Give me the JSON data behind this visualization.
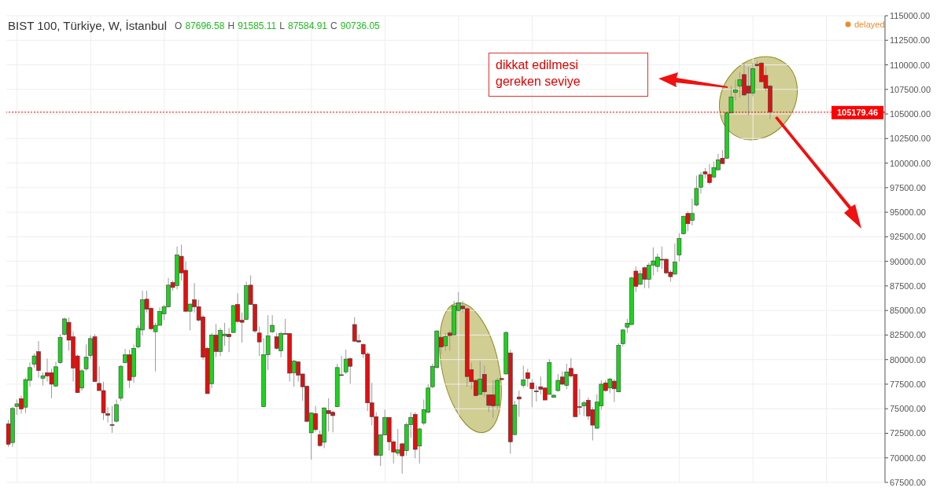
{
  "chart_data": {
    "type": "candlestick",
    "title": "BIST 100, Türkiye, W, İstanbul",
    "subtitle": "O 87696.58 H 91585.11 L 87584.91 C 90736.05",
    "annotations": [
      "delayed",
      "dikkat edilmesi gereken seviye"
    ],
    "colors": [
      "#e01010",
      "#1ed21e",
      "#1ed21e",
      "#e01010",
      "#1ed21e",
      "#1ed21e",
      "#1ed21e",
      "#e01010",
      "#1ed21e",
      "#e01010",
      "#e01010",
      "#1ed21e",
      "#1ed21e",
      "#1ed21e",
      "#e01010",
      "#e01010",
      "#e01010",
      "#1ed21e",
      "#1ed21e",
      "#1ed21e",
      "#e01010",
      "#e01010",
      "#e01010",
      "#e01010",
      "#e01010",
      "#1ed21e",
      "#1ed21e",
      "#1ed21e",
      "#e01010",
      "#1ed21e",
      "#1ed21e",
      "#1ed21e",
      "#e01010",
      "#e01010",
      "#1ed21e",
      "#1ed21e",
      "#1ed21e",
      "#1ed21e",
      "#e01010",
      "#1ed21e",
      "#e01010",
      "#e01010",
      "#1ed21e",
      "#e01010",
      "#e01010",
      "#e01010",
      "#e01010",
      "#1ed21e",
      "#e01010",
      "#1ed21e",
      "#1ed21e",
      "#e01010",
      "#1ed21e",
      "#e01010",
      "#e01010",
      "#1ed21e",
      "#e01010",
      "#e01010",
      "#e01010",
      "#1ed21e",
      "#1ed21e",
      "#1ed21e",
      "#e01010",
      "#1ed21e",
      "#e01010",
      "#e01010",
      "#1ed21e",
      "#e01010",
      "#e01010",
      "#e01010",
      "#1ed21e",
      "#e01010",
      "#e01010",
      "#1ed21e",
      "#e01010",
      "#e01010",
      "#1ed21e",
      "#e01010",
      "#1ed21e",
      "#e01010",
      "#e01010",
      "#e01010",
      "#e01010",
      "#e01010",
      "#e01010",
      "#e01010",
      "#1ed21e",
      "#1ed21e",
      "#e01010",
      "#e01010",
      "#1ed21e",
      "#e01010",
      "#1ed21e",
      "#1ed21e",
      "#e01010",
      "#1ed21e",
      "#1ed21e",
      "#1ed21e",
      "#1ed21e",
      "#1ed21e",
      "#e01010",
      "#1ed21e",
      "#e01010",
      "#1ed21e",
      "#1ed21e",
      "#e01010",
      "#e01010",
      "#e01010",
      "#e01010",
      "#1ed21e",
      "#e01010",
      "#e01010",
      "#e01010",
      "#1ed21e",
      "#e01010",
      "#1ed21e",
      "#e01010",
      "#1ed21e",
      "#e01010",
      "#1ed21e",
      "#e01010",
      "#e01010",
      "#e01010",
      "#e01010",
      "#e01010",
      "#1ed21e",
      "#1ed21e",
      "#1ed21e",
      "#e01010",
      "#1ed21e",
      "#e01010",
      "#e01010",
      "#e01010",
      "#1ed21e",
      "#e01010",
      "#e01010",
      "#1ed21e",
      "#1ed21e",
      "#e01010",
      "#1ed21e",
      "#e01010",
      "#1ed21e",
      "#1ed21e",
      "#1ed21e",
      "#1ed21e",
      "#e01010",
      "#1ed21e",
      "#e01010",
      "#1ed21e",
      "#1ed21e",
      "#1ed21e",
      "#e01010",
      "#e01010",
      "#e01010",
      "#1ed21e",
      "#1ed21e",
      "#1ed21e",
      "#e01010",
      "#1ed21e",
      "#1ed21e",
      "#1ed21e",
      "#e01010",
      "#e01010",
      "#1ed21e",
      "#1ed21e",
      "#e01010",
      "#1ed21e",
      "#1ed21e",
      "#1ed21e",
      "#1ed21e",
      "#e01010",
      "#e01010",
      "#1ed21e",
      "#e01010",
      "#e01010",
      "#e01010",
      "#e01010",
      null,
      null,
      null,
      null,
      null,
      null,
      null,
      null,
      null,
      null,
      null,
      null,
      null,
      null,
      null,
      null,
      null,
      null,
      null,
      null,
      null,
      null,
      null,
      null,
      null,
      null
    ],
    "ylim": [
      67500,
      115000
    ],
    "yticks": [
      {
        "value": 67500,
        "label": "67500.00"
      },
      {
        "value": 70000,
        "label": "70000.00"
      },
      {
        "value": 72500,
        "label": "72500.00"
      },
      {
        "value": 75000,
        "label": "75000.00"
      },
      {
        "value": 77500,
        "label": "77500.00"
      },
      {
        "value": 80000,
        "label": "80000.00"
      },
      {
        "value": 82500,
        "label": "82500.00"
      },
      {
        "value": 85000,
        "label": "85000.00"
      },
      {
        "value": 87500,
        "label": "87500.00"
      },
      {
        "value": 90000,
        "label": "90000.00"
      },
      {
        "value": 92500,
        "label": "92500.00"
      },
      {
        "value": 95000,
        "label": "95000.00"
      },
      {
        "value": 97500,
        "label": "97500.00"
      },
      {
        "value": 100000,
        "label": "100000.00"
      },
      {
        "value": 102500,
        "label": "102500.00"
      },
      {
        "value": 105000,
        "label": "105000.00"
      },
      {
        "value": 107500,
        "label": "107500.00"
      },
      {
        "value": 110000,
        "label": "110000.00"
      },
      {
        "value": 112500,
        "label": "112500.00"
      },
      {
        "value": 115000,
        "label": "115000.00"
      }
    ],
    "grid": true,
    "ref_lines": [
      {
        "axis": "y",
        "value": 105179.46,
        "label": "105179.46",
        "color": "#ff0000",
        "line_style": "dotted"
      }
    ],
    "categories": [
      null,
      null,
      null,
      null,
      null,
      null,
      null,
      null,
      null,
      null,
      null,
      null,
      null,
      null,
      null,
      null,
      null,
      null,
      null,
      null,
      null,
      null,
      null,
      null,
      null,
      null,
      null,
      null,
      null,
      null,
      null,
      null,
      null,
      null,
      null,
      null,
      null,
      null,
      null,
      null,
      null,
      null,
      null,
      null,
      null,
      null,
      null,
      null,
      null,
      null,
      null,
      null,
      null,
      null,
      null,
      null,
      null,
      null,
      null,
      null,
      null,
      null,
      null,
      null,
      null,
      null,
      null,
      null,
      null,
      null,
      null,
      null,
      null,
      null,
      null,
      null,
      null,
      null,
      null,
      null,
      null,
      null,
      null,
      null,
      null,
      null,
      null,
      null,
      null,
      null,
      null,
      null,
      null,
      null,
      null,
      null,
      null,
      null,
      null,
      null,
      null,
      null,
      null,
      null,
      null,
      null,
      null,
      null,
      null,
      null,
      null,
      null,
      null,
      null,
      null,
      null,
      null,
      null,
      null,
      null,
      null,
      null,
      null,
      null,
      null,
      null,
      null,
      null,
      null,
      null,
      null,
      null,
      null,
      null,
      null,
      null,
      null,
      null,
      null,
      null,
      null,
      null,
      null,
      null,
      null,
      null,
      null,
      null,
      null,
      null,
      null,
      null,
      null,
      null,
      null,
      null,
      null,
      null,
      null,
      null,
      null,
      null,
      null,
      null,
      null,
      null,
      null,
      null,
      null,
      null,
      null,
      null,
      null,
      null,
      null,
      null,
      null,
      null,
      null,
      null,
      null,
      null,
      null,
      null,
      null,
      null,
      null,
      null,
      null,
      null,
      null,
      null,
      null,
      null,
      null,
      null,
      null,
      null,
      null,
      null,
      null,
      null,
      null
    ],
    "ohlc": [
      [
        73470,
        73860,
        71120,
        71380
      ],
      [
        71560,
        75160,
        71120,
        75030
      ],
      [
        75240,
        75940,
        74380,
        75500
      ],
      [
        76020,
        76330,
        74500,
        74980
      ],
      [
        75160,
        78150,
        74580,
        77970
      ],
      [
        77890,
        79710,
        77240,
        79190
      ],
      [
        79530,
        80630,
        79190,
        80370
      ],
      [
        80810,
        81880,
        78150,
        78880
      ],
      [
        78100,
        78670,
        77370,
        78360
      ],
      [
        78670,
        80110,
        77760,
        78330
      ],
      [
        78670,
        79060,
        76070,
        77500
      ],
      [
        77320,
        79790,
        77190,
        79270
      ],
      [
        79710,
        82580,
        79580,
        82240
      ],
      [
        82580,
        84270,
        82450,
        84140
      ],
      [
        83800,
        84270,
        80890,
        81980
      ],
      [
        82320,
        82840,
        77760,
        79140
      ],
      [
        80370,
        80500,
        76590,
        76640
      ],
      [
        77110,
        79060,
        76850,
        78860
      ],
      [
        79060,
        81540,
        78860,
        80240
      ],
      [
        80420,
        82450,
        80110,
        82140
      ],
      [
        82320,
        82580,
        77760,
        77760
      ],
      [
        77580,
        79320,
        76850,
        76850
      ],
      [
        76850,
        77760,
        73860,
        74580
      ],
      [
        74500,
        75160,
        73600,
        74330
      ],
      [
        73390,
        75290,
        72550,
        73340
      ],
      [
        73730,
        75940,
        73600,
        75420
      ],
      [
        76070,
        79450,
        75810,
        79320
      ],
      [
        79710,
        81100,
        79580,
        80500
      ],
      [
        80500,
        81020,
        77110,
        77890
      ],
      [
        78280,
        81540,
        77630,
        81150
      ],
      [
        81280,
        83490,
        81150,
        83180
      ],
      [
        83020,
        87010,
        82450,
        86090
      ],
      [
        86150,
        87010,
        84790,
        85130
      ],
      [
        85230,
        85310,
        82970,
        83150
      ],
      [
        82840,
        83750,
        78800,
        83490
      ],
      [
        83490,
        85310,
        83490,
        84900
      ],
      [
        84660,
        85570,
        84010,
        85370
      ],
      [
        85370,
        88310,
        85310,
        87580
      ],
      [
        87840,
        88050,
        87010,
        87340
      ],
      [
        87530,
        91510,
        87140,
        90650
      ],
      [
        90520,
        91690,
        88050,
        88830
      ],
      [
        89090,
        90000,
        84840,
        84920
      ],
      [
        84920,
        85700,
        82970,
        85650
      ],
      [
        86090,
        87790,
        84790,
        85370
      ],
      [
        85390,
        86090,
        83880,
        84010
      ],
      [
        84350,
        84530,
        79970,
        80240
      ],
      [
        81150,
        81280,
        76540,
        76540
      ],
      [
        77550,
        82710,
        77110,
        82500
      ],
      [
        82500,
        83620,
        80240,
        80830
      ],
      [
        80830,
        83230,
        80370,
        82970
      ],
      [
        82420,
        83750,
        81410,
        82600
      ],
      [
        82580,
        83230,
        80760,
        82320
      ],
      [
        82760,
        85570,
        82710,
        85500
      ],
      [
        85620,
        86750,
        83750,
        83880
      ],
      [
        84010,
        84790,
        81720,
        83800
      ],
      [
        84090,
        87920,
        84010,
        87530
      ],
      [
        87580,
        88570,
        85570,
        85620
      ],
      [
        85620,
        85700,
        82710,
        82920
      ],
      [
        82710,
        83360,
        80370,
        81800
      ],
      [
        75210,
        82190,
        75160,
        80500
      ],
      [
        80500,
        84530,
        78930,
        82400
      ],
      [
        82840,
        84530,
        82710,
        83490
      ],
      [
        82320,
        82710,
        81020,
        81150
      ],
      [
        80890,
        82840,
        80240,
        82660
      ],
      [
        82660,
        84140,
        82600,
        82630
      ],
      [
        82660,
        82710,
        77760,
        78620
      ],
      [
        78670,
        79970,
        77240,
        79840
      ],
      [
        79770,
        79840,
        77760,
        78410
      ],
      [
        78540,
        78540,
        75810,
        77240
      ],
      [
        77290,
        77370,
        73600,
        73720
      ],
      [
        72550,
        74640,
        69820,
        74560
      ],
      [
        74510,
        75290,
        72680,
        72870
      ],
      [
        72370,
        72810,
        71120,
        71250
      ],
      [
        71590,
        75160,
        70990,
        75080
      ],
      [
        74820,
        76070,
        72680,
        74510
      ],
      [
        74640,
        74770,
        72600,
        74300
      ],
      [
        75210,
        79580,
        75160,
        79190
      ],
      [
        78460,
        80370,
        78360,
        78400
      ],
      [
        78750,
        81020,
        78540,
        80050
      ],
      [
        80110,
        80240,
        77550,
        79320
      ],
      [
        83570,
        84320,
        81800,
        81880
      ],
      [
        81930,
        82580,
        81720,
        81800
      ],
      [
        81540,
        81670,
        80160,
        80570
      ],
      [
        80570,
        80760,
        74770,
        75600
      ],
      [
        75600,
        77630,
        73330,
        74190
      ],
      [
        74190,
        74640,
        70210,
        70260
      ],
      [
        70260,
        72420,
        69170,
        72340
      ],
      [
        72340,
        74900,
        72290,
        74120
      ],
      [
        74120,
        74120,
        70730,
        71640
      ],
      [
        71640,
        71770,
        69430,
        70600
      ],
      [
        70470,
        72940,
        70210,
        70810
      ],
      [
        71430,
        71510,
        68390,
        70210
      ],
      [
        70730,
        73600,
        70210,
        73390
      ],
      [
        73390,
        74640,
        72030,
        74120
      ],
      [
        74430,
        74640,
        69950,
        70860
      ],
      [
        71200,
        73070,
        69430,
        72940
      ],
      [
        73540,
        75940,
        73330,
        74900
      ],
      [
        74640,
        77500,
        74510,
        77110
      ],
      [
        77240,
        79580,
        77110,
        79320
      ],
      [
        79190,
        82970,
        79060,
        82920
      ],
      [
        82240,
        82580,
        80500,
        81280
      ],
      [
        81410,
        82710,
        80890,
        82320
      ],
      [
        82710,
        82970,
        80890,
        82450
      ],
      [
        82530,
        85960,
        82450,
        85440
      ],
      [
        85000,
        86880,
        84920,
        85780
      ],
      [
        85440,
        85960,
        84790,
        85180
      ],
      [
        85180,
        85310,
        77240,
        78280
      ],
      [
        78980,
        79710,
        76980,
        77760
      ],
      [
        77890,
        78020,
        76250,
        76330
      ],
      [
        76460,
        79840,
        76460,
        78020
      ],
      [
        78490,
        79380,
        76200,
        76720
      ],
      [
        76410,
        76460,
        74640,
        75340
      ],
      [
        76410,
        77890,
        74060,
        75290
      ],
      [
        75340,
        78150,
        74900,
        77890
      ],
      [
        78070,
        78150,
        77890,
        77970
      ],
      [
        78540,
        82920,
        78490,
        82760
      ],
      [
        80680,
        81020,
        70420,
        71640
      ],
      [
        72370,
        75810,
        72290,
        75370
      ],
      [
        76200,
        76850,
        74170,
        75990
      ],
      [
        77370,
        79380,
        77110,
        77940
      ],
      [
        78670,
        79060,
        77240,
        78070
      ],
      [
        77630,
        78020,
        75160,
        77030
      ],
      [
        76800,
        77370,
        75730,
        76770
      ],
      [
        77240,
        78280,
        76460,
        76980
      ],
      [
        77110,
        77190,
        75890,
        75890
      ],
      [
        76460,
        80050,
        76460,
        79710
      ],
      [
        76150,
        76460,
        76150,
        76380
      ],
      [
        76850,
        78540,
        76720,
        77890
      ],
      [
        78230,
        78800,
        77370,
        77500
      ],
      [
        77370,
        79580,
        76980,
        78750
      ],
      [
        79110,
        80160,
        78150,
        78330
      ],
      [
        78490,
        78540,
        74190,
        74190
      ],
      [
        75210,
        77030,
        74380,
        75160
      ],
      [
        75290,
        75810,
        74250,
        75600
      ],
      [
        75860,
        76150,
        73850,
        74250
      ],
      [
        74900,
        75160,
        71770,
        73330
      ],
      [
        73020,
        76460,
        72940,
        75680
      ],
      [
        75290,
        77890,
        74900,
        77500
      ],
      [
        77630,
        77890,
        76720,
        76850
      ],
      [
        77110,
        78150,
        76590,
        78020
      ],
      [
        77810,
        78020,
        75680,
        77030
      ],
      [
        76720,
        81670,
        76670,
        81460
      ],
      [
        81620,
        83100,
        81350,
        83020
      ],
      [
        83310,
        84140,
        82710,
        83700
      ],
      [
        83570,
        88440,
        83490,
        88310
      ],
      [
        89010,
        89480,
        86880,
        87450
      ],
      [
        87660,
        89090,
        87610,
        88750
      ],
      [
        89350,
        89480,
        87260,
        88180
      ],
      [
        88180,
        89870,
        87260,
        89610
      ],
      [
        89610,
        91430,
        88570,
        90050
      ],
      [
        89480,
        90780,
        88910,
        90440
      ],
      [
        90210,
        91510,
        89220,
        90180
      ],
      [
        90210,
        90310,
        88700,
        88830
      ],
      [
        88910,
        89090,
        87920,
        88440
      ],
      [
        88700,
        91820,
        88620,
        89920
      ],
      [
        90650,
        92860,
        90000,
        92340
      ],
      [
        92810,
        94690,
        92730,
        94560
      ],
      [
        94870,
        95080,
        93070,
        93830
      ],
      [
        94170,
        96380,
        93650,
        94870
      ],
      [
        95730,
        98720,
        95600,
        97420
      ],
      [
        97550,
        99110,
        96900,
        98780
      ],
      [
        99110,
        99500,
        98460,
        98900
      ],
      [
        98850,
        99900,
        97810,
        98020
      ],
      [
        98590,
        100160,
        98460,
        99550
      ],
      [
        99320,
        100940,
        99240,
        100340
      ],
      [
        100500,
        101330,
        99900,
        99950
      ],
      [
        100500,
        105100,
        100420,
        105100
      ],
      [
        105100,
        107840,
        105100,
        106720
      ],
      [
        107190,
        108490,
        106400,
        107450
      ],
      [
        107840,
        109270,
        106670,
        108490
      ],
      [
        109010,
        110180,
        106800,
        106930
      ],
      [
        107840,
        109790,
        104840,
        107110
      ],
      [
        107110,
        110180,
        106800,
        109610
      ],
      [
        110050,
        110440,
        109790,
        109920
      ],
      [
        110180,
        110310,
        108180,
        108280
      ],
      [
        108930,
        109790,
        107320,
        107630
      ],
      [
        107840,
        107970,
        104460,
        105179.46
      ],
      null,
      null,
      null,
      null,
      null,
      null,
      null,
      null,
      null,
      null,
      null,
      null,
      null,
      null,
      null,
      null,
      null,
      null,
      null,
      null,
      null,
      null,
      null,
      null,
      null,
      null
    ]
  }
}
